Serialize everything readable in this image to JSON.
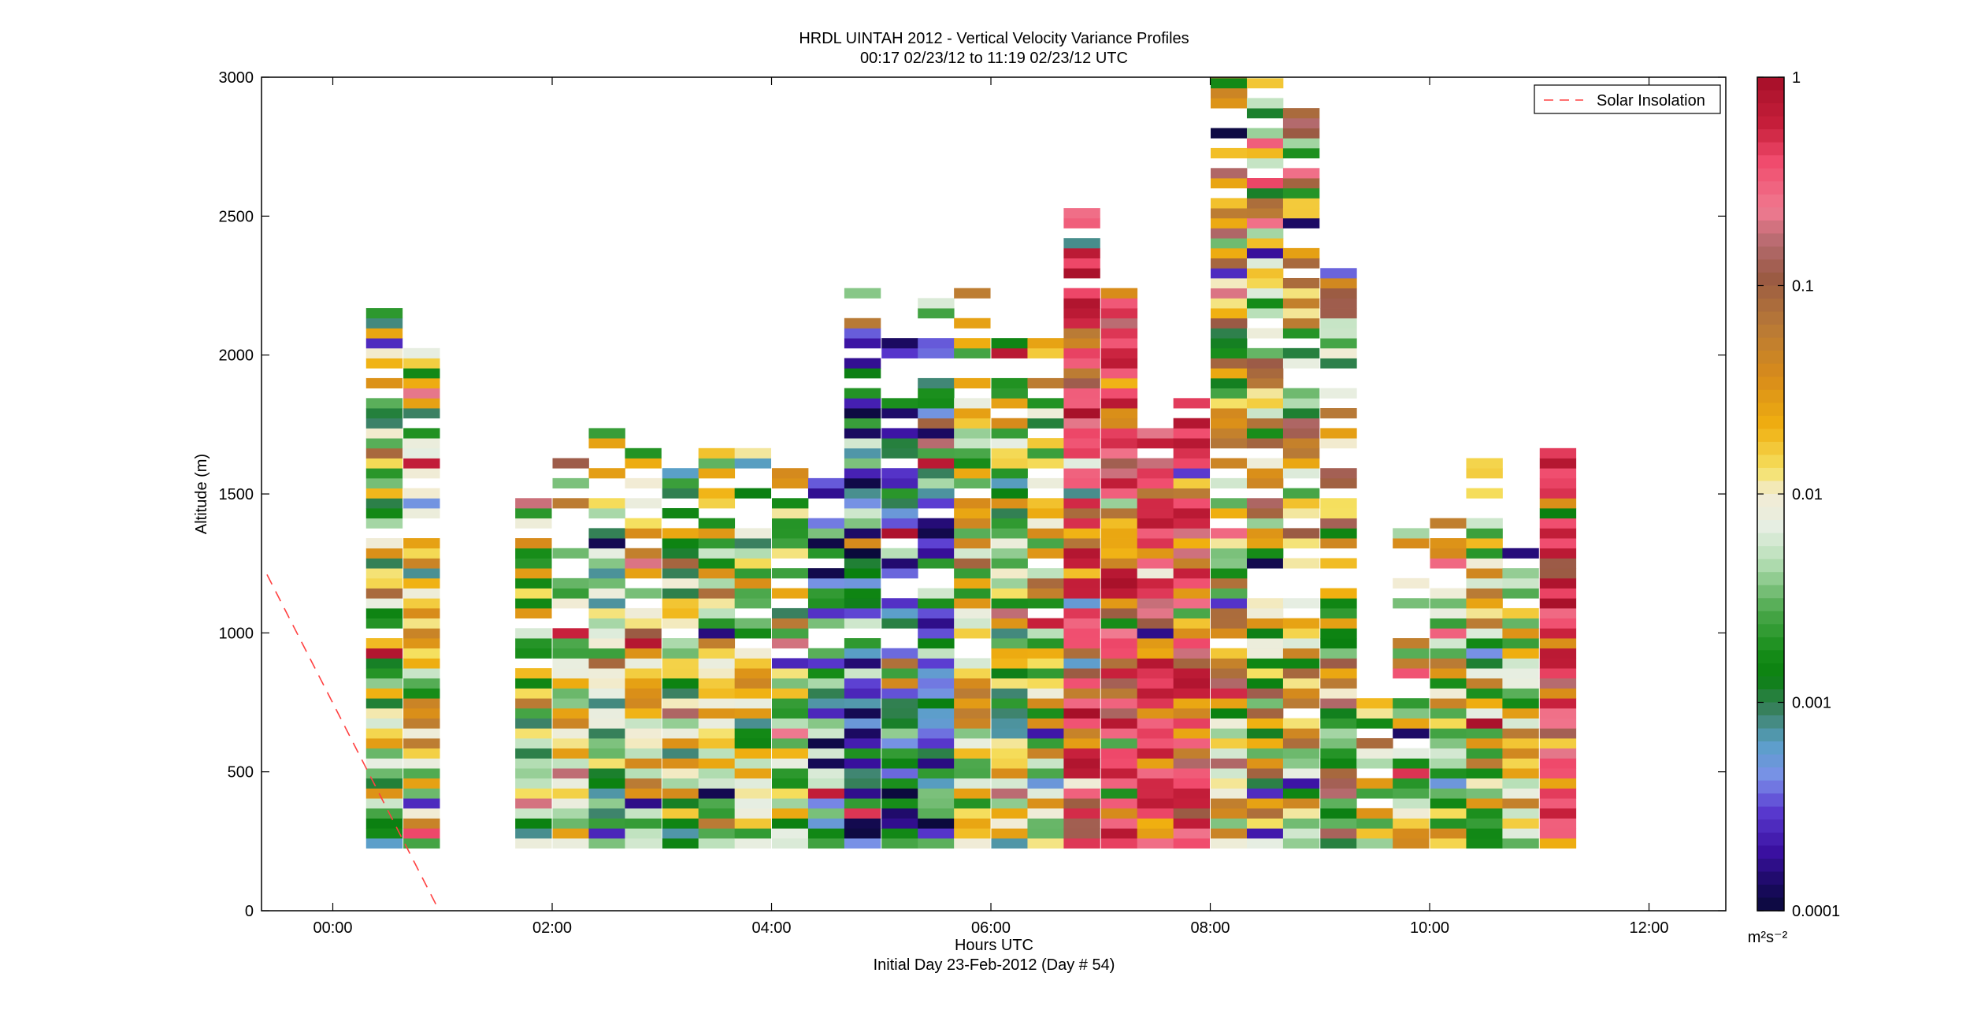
{
  "chart_data": {
    "type": "heatmap",
    "title": "HRDL UINTAH 2012 - Vertical Velocity Variance Profiles",
    "subtitle": "00:17 02/23/12 to 11:19 02/23/12  UTC",
    "xlabel": "Hours UTC",
    "xlabel2": "Initial Day 23-Feb-2012 (Day # 54)",
    "ylabel": "Altitude (m)",
    "xlim": [
      -0.65,
      12.7
    ],
    "ylim": [
      0,
      3000
    ],
    "x_ticks": [
      0,
      2,
      4,
      6,
      8,
      10,
      12
    ],
    "x_tick_labels": [
      "00:00",
      "02:00",
      "04:00",
      "06:00",
      "08:00",
      "10:00",
      "12:00"
    ],
    "y_ticks": [
      0,
      500,
      1000,
      1500,
      2000,
      2500,
      3000
    ],
    "y_tick_labels": [
      "0",
      "500",
      "1000",
      "1500",
      "2000",
      "2500",
      "3000"
    ],
    "grid": false,
    "legend": {
      "position": "top-right",
      "entries": [
        "Solar Insolation"
      ]
    },
    "solar_insolation_line": {
      "x": [
        -0.6,
        0.97
      ],
      "y": [
        1210,
        0
      ],
      "color": "#ff4040",
      "style": "dashed"
    },
    "colorbar": {
      "scale": "log",
      "min": 0.0001,
      "max": 1,
      "tick_values": [
        1,
        0.1,
        0.01,
        0.001,
        0.0001
      ],
      "tick_labels": [
        "1",
        "0.1",
        "0.01",
        "0.001",
        "0.0001"
      ],
      "unit_label": "m²s⁻²"
    },
    "profiles": [
      {
        "time": 0.47,
        "z_top": 2140,
        "pattern": "D",
        "gaps": [
          1930,
          1870
        ]
      },
      {
        "time": 0.81,
        "z_top": 2020,
        "pattern": "S"
      },
      {
        "time": 1.83,
        "z_top": 1510,
        "pattern": "D",
        "gaps": [
          1500,
          1360,
          880
        ]
      },
      {
        "time": 2.17,
        "z_top": 1620,
        "pattern": "S",
        "gaps": [
          1500,
          1430
        ]
      },
      {
        "time": 2.5,
        "z_top": 1710,
        "pattern": "D",
        "gaps": [
          1600,
          1550
        ]
      },
      {
        "time": 2.83,
        "z_top": 1630,
        "pattern": "S",
        "gaps": [
          1500,
          1430,
          1320
        ]
      },
      {
        "time": 3.17,
        "z_top": 1570,
        "pattern": "D",
        "gaps": [
          1470,
          1390
        ]
      },
      {
        "time": 3.5,
        "z_top": 1630,
        "pattern": "S",
        "gaps": [
          1550
        ]
      },
      {
        "time": 3.83,
        "z_top": 1650,
        "pattern": "D",
        "gaps": [
          1550,
          1470
        ]
      },
      {
        "time": 4.17,
        "z_top": 1570,
        "pattern": "S",
        "gaps": [
          1500,
          1100
        ]
      },
      {
        "time": 4.5,
        "z_top": 1550,
        "pattern": "N",
        "gaps": [
          1450,
          1000
        ]
      },
      {
        "time": 4.83,
        "z_top": 2240,
        "pattern": "N",
        "gaps": [
          2150,
          2000,
          1900
        ]
      },
      {
        "time": 5.17,
        "z_top": 2040,
        "pattern": "N",
        "gaps": [
          1980,
          1880,
          980
        ]
      },
      {
        "time": 5.5,
        "z_top": 2180,
        "pattern": "N",
        "gaps": [
          2100,
          1950,
          1200
        ]
      },
      {
        "time": 5.83,
        "z_top": 2240,
        "pattern": "S",
        "gaps": [
          2150,
          1950,
          1850
        ]
      },
      {
        "time": 6.17,
        "z_top": 2050,
        "pattern": "D",
        "gaps": [
          1980,
          1800
        ]
      },
      {
        "time": 6.5,
        "z_top": 2050,
        "pattern": "S",
        "gaps": [
          1980,
          1850
        ]
      },
      {
        "time": 6.83,
        "z_top": 2500,
        "pattern": "R",
        "gaps": [
          2450,
          2250
        ]
      },
      {
        "time": 7.17,
        "z_top": 2240,
        "pattern": "R"
      },
      {
        "time": 7.5,
        "z_top": 1730,
        "pattern": "R",
        "gaps": [
          1650
        ]
      },
      {
        "time": 7.83,
        "z_top": 1830,
        "pattern": "R",
        "gaps": [
          1780
        ]
      },
      {
        "time": 8.17,
        "z_top": 3000,
        "pattern": "T",
        "gaps": [
          2850,
          2750,
          2700,
          1500
        ]
      },
      {
        "time": 8.5,
        "z_top": 3000,
        "pattern": "T",
        "gaps": [
          2950,
          1650,
          1200
        ]
      },
      {
        "time": 8.83,
        "z_top": 2880,
        "pattern": "T",
        "gaps": [
          1300,
          1200,
          700
        ]
      },
      {
        "time": 9.17,
        "z_top": 2290,
        "pattern": "T",
        "gaps": [
          1900,
          1600,
          1500,
          1200
        ]
      },
      {
        "time": 9.5,
        "z_top": 730,
        "pattern": "S",
        "gaps": [
          650,
          500,
          400
        ]
      },
      {
        "time": 9.83,
        "z_top": 1360,
        "pattern": "S",
        "gaps": [
          1300,
          1050,
          800,
          600
        ]
      },
      {
        "time": 10.17,
        "z_top": 1400,
        "pattern": "S",
        "gaps": [
          1350,
          1200
        ]
      },
      {
        "time": 10.5,
        "z_top": 1600,
        "pattern": "S",
        "gaps": [
          1550,
          1450
        ]
      },
      {
        "time": 10.83,
        "z_top": 1300,
        "pattern": "S",
        "gaps": [
          1250,
          1100
        ]
      },
      {
        "time": 11.17,
        "z_top": 1640,
        "pattern": "R"
      }
    ]
  }
}
